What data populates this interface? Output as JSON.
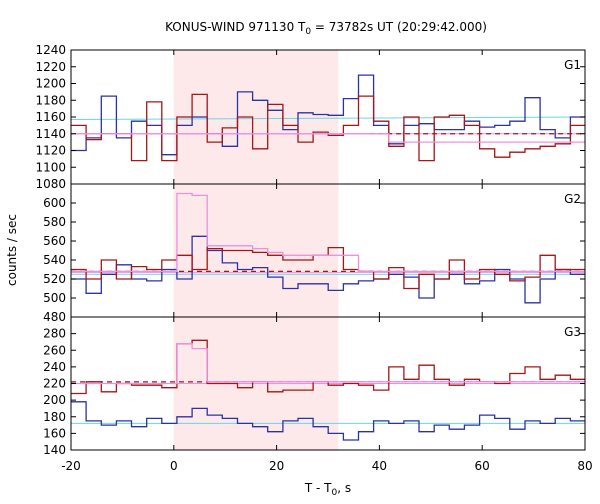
{
  "chart_data": {
    "type": "line",
    "title": "KONUS-WIND 971130 T",
    "title_sub": "0",
    "title_rest": " = 73782s UT (20:29:42.000)",
    "ylabel": "counts / sec",
    "xlabel_main": "T - T",
    "xlabel_sub": "0",
    "xlabel_rest": ", s",
    "xlim": [
      -20,
      80
    ],
    "x_ticks": [
      -20,
      0,
      20,
      40,
      60,
      80
    ],
    "highlight_interval": [
      0,
      32
    ],
    "colors": {
      "highlight": "#fde9ea",
      "dark_red": "#a51616",
      "blue": "#2a32a8",
      "pink": "#ee90e0",
      "cyan": "#6ad6e6",
      "axis": "#000000"
    },
    "panels": [
      {
        "label": "G1",
        "ylim": [
          1080,
          1240
        ],
        "y_ticks": [
          1080,
          1100,
          1120,
          1140,
          1160,
          1180,
          1200,
          1220,
          1240
        ],
        "x0": -20,
        "bin_width": 2.944,
        "series": [
          {
            "color": "blue",
            "values": [
              1120,
              1135,
              1185,
              1135,
              1155,
              1150,
              1115,
              1150,
              1160,
              1140,
              1125,
              1190,
              1180,
              1168,
              1145,
              1165,
              1163,
              1162,
              1182,
              1210,
              1150,
              1128,
              1150,
              1152,
              1145,
              1145,
              1155,
              1148,
              1150,
              1155,
              1183,
              1145,
              1135,
              1160
            ]
          },
          {
            "color": "dark_red",
            "values": [
              1150,
              1133,
              1140,
              1140,
              1108,
              1178,
              1108,
              1160,
              1187,
              1130,
              1147,
              1160,
              1122,
              1175,
              1150,
              1130,
              1142,
              1138,
              1150,
              1185,
              1155,
              1125,
              1160,
              1108,
              1160,
              1162,
              1150,
              1122,
              1112,
              1118,
              1122,
              1125,
              1128,
              1150,
              1170
            ]
          },
          {
            "color": "pink",
            "values": [
              1140,
              1140,
              1140,
              1140,
              1140,
              1140,
              1140,
              1140,
              1140,
              1140,
              1140,
              1140,
              1140,
              1140,
              1140,
              1140,
              1140,
              1140,
              1140,
              1140,
              1140,
              1130,
              1130,
              1130,
              1130,
              1130,
              1130,
              1130,
              1130,
              1130,
              1130,
              1130,
              1130,
              1130,
              1130
            ]
          }
        ],
        "fit_dashed": {
          "color": "dark_red",
          "x": [
            38,
            80
          ],
          "y": 1140
        },
        "fit_lines": [
          {
            "color": "cyan",
            "x": [
              -20,
              80
            ],
            "y": [
              1157,
              1160
            ]
          },
          {
            "color": "pink",
            "x": [
              -20,
              80
            ],
            "y": [
              1140,
              1140
            ]
          }
        ]
      },
      {
        "label": "G2",
        "ylim": [
          480,
          620
        ],
        "y_ticks": [
          480,
          500,
          520,
          540,
          560,
          580,
          600
        ],
        "x0": -20,
        "bin_width": 2.944,
        "series": [
          {
            "color": "blue",
            "values": [
              520,
              505,
              525,
              535,
              520,
              518,
              530,
              520,
              565,
              550,
              537,
              530,
              532,
              522,
              510,
              515,
              515,
              508,
              515,
              518,
              520,
              525,
              522,
              500,
              520,
              525,
              515,
              518,
              530,
              520,
              495,
              520,
              530,
              525,
              515,
              505
            ]
          },
          {
            "color": "dark_red",
            "values": [
              530,
              520,
              540,
              520,
              533,
              530,
              540,
              545,
              530,
              552,
              550,
              550,
              548,
              545,
              540,
              540,
              545,
              553,
              530,
              528,
              520,
              532,
              510,
              525,
              520,
              540,
              520,
              530,
              525,
              518,
              522,
              545,
              530,
              530,
              540,
              525
            ]
          },
          {
            "color": "pink",
            "values": [
              528,
              528,
              528,
              528,
              528,
              528,
              528,
              610,
              608,
              555,
              555,
              555,
              552,
              548,
              545,
              545,
              545,
              545,
              545,
              528,
              528,
              528,
              528,
              528,
              528,
              528,
              528,
              528,
              528,
              528,
              528,
              528,
              528,
              528
            ]
          }
        ],
        "fit_dashed": {
          "color": "dark_red",
          "x": [
            -20,
            80
          ],
          "y": 528
        },
        "fit_lines": [
          {
            "color": "cyan",
            "x": [
              -20,
              80
            ],
            "y": [
              525,
              525
            ]
          },
          {
            "color": "pink",
            "x": [
              -20,
              80
            ],
            "y": [
              527,
              527
            ]
          }
        ]
      },
      {
        "label": "G3",
        "ylim": [
          140,
          300
        ],
        "y_ticks": [
          140,
          160,
          180,
          200,
          220,
          240,
          260,
          280
        ],
        "x0": -20,
        "bin_width": 2.944,
        "series": [
          {
            "color": "blue",
            "values": [
              198,
              175,
              170,
              175,
              168,
              178,
              172,
              180,
              190,
              182,
              178,
              172,
              168,
              162,
              175,
              178,
              168,
              160,
              152,
              162,
              175,
              172,
              175,
              162,
              170,
              165,
              170,
              182,
              178,
              165,
              175,
              172,
              178,
              175,
              162,
              182
            ]
          },
          {
            "color": "dark_red",
            "values": [
              208,
              222,
              210,
              220,
              218,
              218,
              215,
              268,
              272,
              220,
              220,
              215,
              222,
              210,
              212,
              212,
              222,
              218,
              220,
              218,
              212,
              240,
              225,
              242,
              225,
              218,
              225,
              222,
              220,
              232,
              240,
              225,
              230,
              225,
              215,
              240
            ]
          },
          {
            "color": "pink",
            "values": [
              220,
              220,
              220,
              220,
              220,
              220,
              220,
              268,
              262,
              222,
              222,
              222,
              222,
              222,
              222,
              222,
              222,
              222,
              222,
              222,
              222,
              222,
              222,
              222,
              222,
              222,
              222,
              222,
              222,
              222,
              222,
              222,
              222,
              222
            ]
          }
        ],
        "fit_dashed": {
          "color": "dark_red",
          "x": [
            -20,
            80
          ],
          "y": 222
        },
        "fit_lines": [
          {
            "color": "cyan",
            "x": [
              -20,
              80
            ],
            "y": [
              172,
              172
            ]
          },
          {
            "color": "pink",
            "x": [
              -20,
              80
            ],
            "y": [
              220,
              220
            ]
          }
        ]
      }
    ]
  }
}
